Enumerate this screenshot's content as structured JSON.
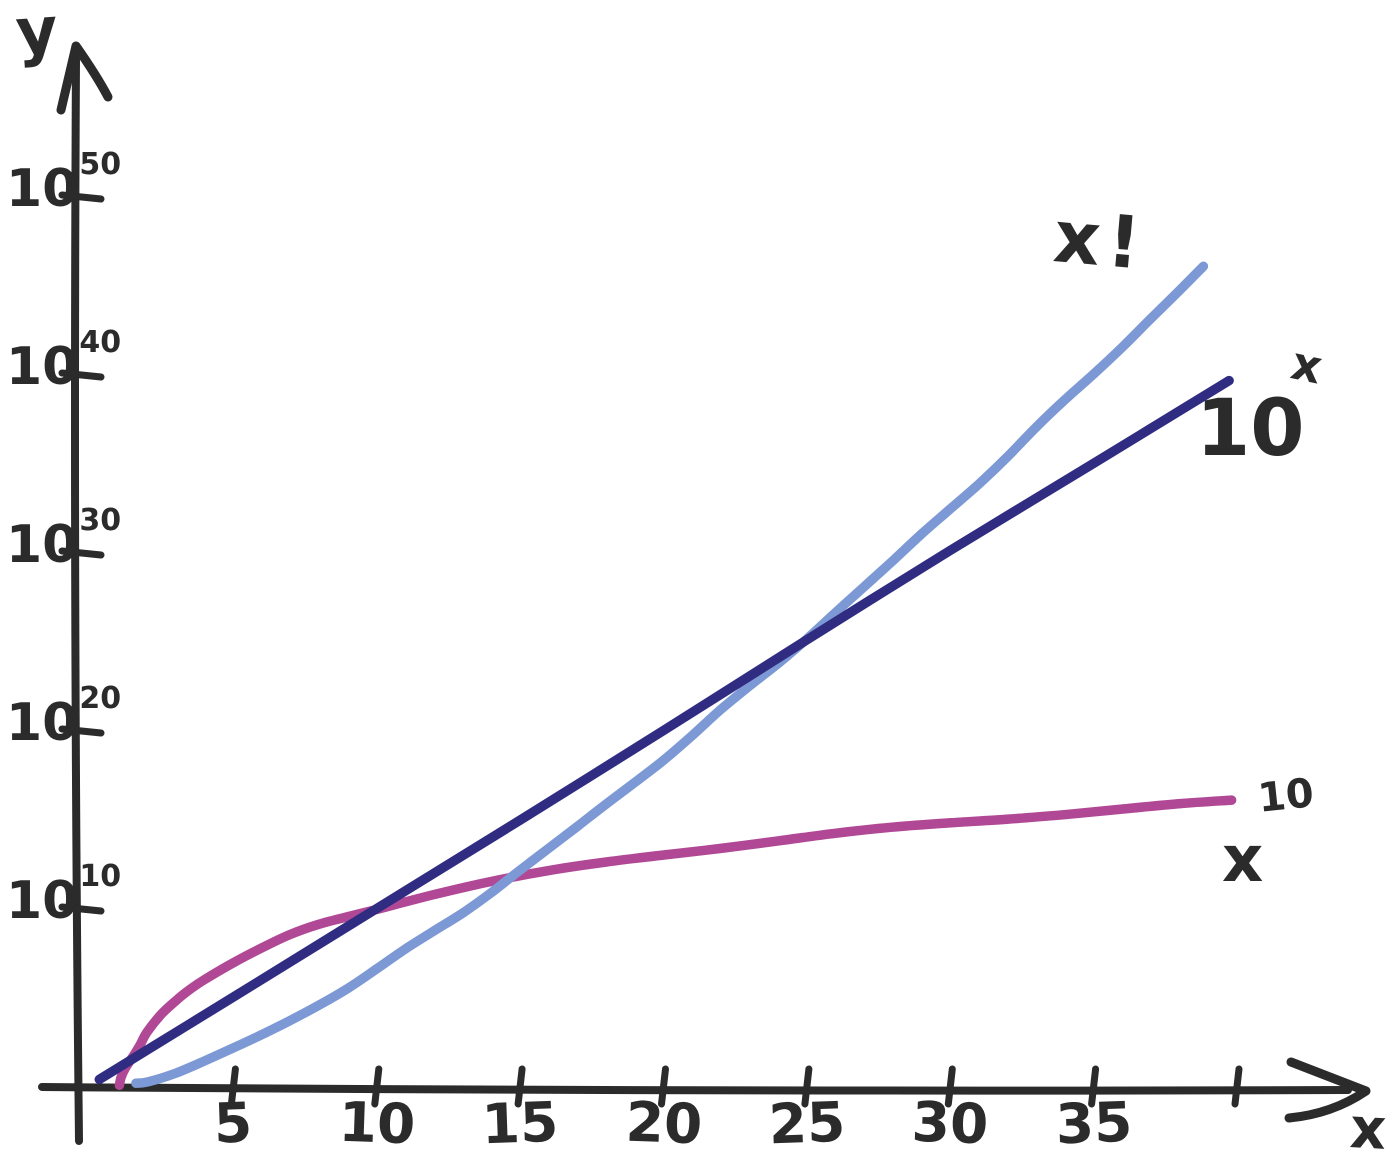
{
  "page": {
    "background": "#ffffff",
    "ink_color": "#2b2b2b"
  },
  "labels": {
    "y_axis": "y",
    "x_axis": "x"
  },
  "curve_labels": {
    "factorial": {
      "text": "x!"
    },
    "exponential": {
      "base": "10",
      "sup": "x"
    },
    "power": {
      "base": "x",
      "sup": "10"
    }
  },
  "chart_data": {
    "type": "line",
    "title": "",
    "xlabel": "x",
    "ylabel": "y",
    "y_scale": "log10",
    "grid": false,
    "legend": "inline-labels",
    "xlim": [
      0,
      44
    ],
    "ylim_log10": [
      0,
      56
    ],
    "x_ticks": [
      {
        "value": 5,
        "label": "5"
      },
      {
        "value": 10,
        "label": "10"
      },
      {
        "value": 15,
        "label": "15"
      },
      {
        "value": 20,
        "label": "20"
      },
      {
        "value": 25,
        "label": "25"
      },
      {
        "value": 30,
        "label": "30"
      },
      {
        "value": 35,
        "label": "35"
      },
      {
        "value": 40,
        "label": ""
      }
    ],
    "y_ticks": [
      {
        "log10_value": 50,
        "label_base": "10",
        "label_exponent": "50"
      },
      {
        "log10_value": 40,
        "label_base": "10",
        "label_exponent": "40"
      },
      {
        "log10_value": 30,
        "label_base": "10",
        "label_exponent": "30"
      },
      {
        "log10_value": 20,
        "label_base": "10",
        "label_exponent": "20"
      },
      {
        "log10_value": 10,
        "label_base": "10",
        "label_exponent": "10"
      }
    ],
    "series": [
      {
        "name": "x-factorial",
        "label": "x!",
        "color": "#7d99d5",
        "x": [
          1.6,
          2,
          3,
          4,
          5,
          6,
          7,
          8,
          9,
          10,
          11,
          12,
          13,
          14,
          15,
          16,
          17,
          18,
          19,
          20,
          21,
          22,
          23,
          24,
          25,
          26,
          27,
          28,
          29,
          30,
          31,
          32,
          33,
          34,
          35,
          36,
          37,
          38,
          38.8
        ],
        "log10_y": [
          0.16,
          0.3,
          0.78,
          1.38,
          2.08,
          2.86,
          3.7,
          4.61,
          5.56,
          6.56,
          7.6,
          8.68,
          9.79,
          10.94,
          12.12,
          13.32,
          14.55,
          15.81,
          17.09,
          18.39,
          19.71,
          21.05,
          22.41,
          23.79,
          25.19,
          26.61,
          28.04,
          29.48,
          30.95,
          32.42,
          33.92,
          35.42,
          36.94,
          38.47,
          40.01,
          41.57,
          43.14,
          44.72,
          45.99
        ]
      },
      {
        "name": "10-pow-x",
        "label": "10^x",
        "color": "#2f2c82",
        "x": [
          0.3,
          5,
          10,
          15,
          20,
          25,
          30,
          35,
          39.7
        ],
        "log10_y": [
          0.3,
          5,
          10,
          15,
          20,
          25,
          30,
          35,
          39.7
        ]
      },
      {
        "name": "x-pow-10",
        "label": "x^10",
        "color": "#b04896",
        "x": [
          1.0,
          1.1,
          1.25,
          1.5,
          1.75,
          2,
          2.5,
          3,
          3.5,
          4,
          5,
          6,
          7,
          8,
          9,
          10,
          12,
          14,
          16,
          18,
          20,
          22,
          24,
          26,
          28,
          30,
          32,
          34,
          36,
          38,
          39.8
        ],
        "log10_y": [
          0.0,
          0.41,
          0.97,
          1.76,
          2.43,
          3.01,
          3.98,
          4.77,
          5.44,
          6.02,
          6.99,
          7.78,
          8.45,
          9.03,
          9.54,
          10.0,
          10.79,
          11.46,
          12.04,
          12.55,
          13.01,
          13.42,
          13.8,
          14.15,
          14.47,
          14.77,
          15.05,
          15.31,
          15.56,
          15.8,
          16.0
        ]
      }
    ]
  }
}
